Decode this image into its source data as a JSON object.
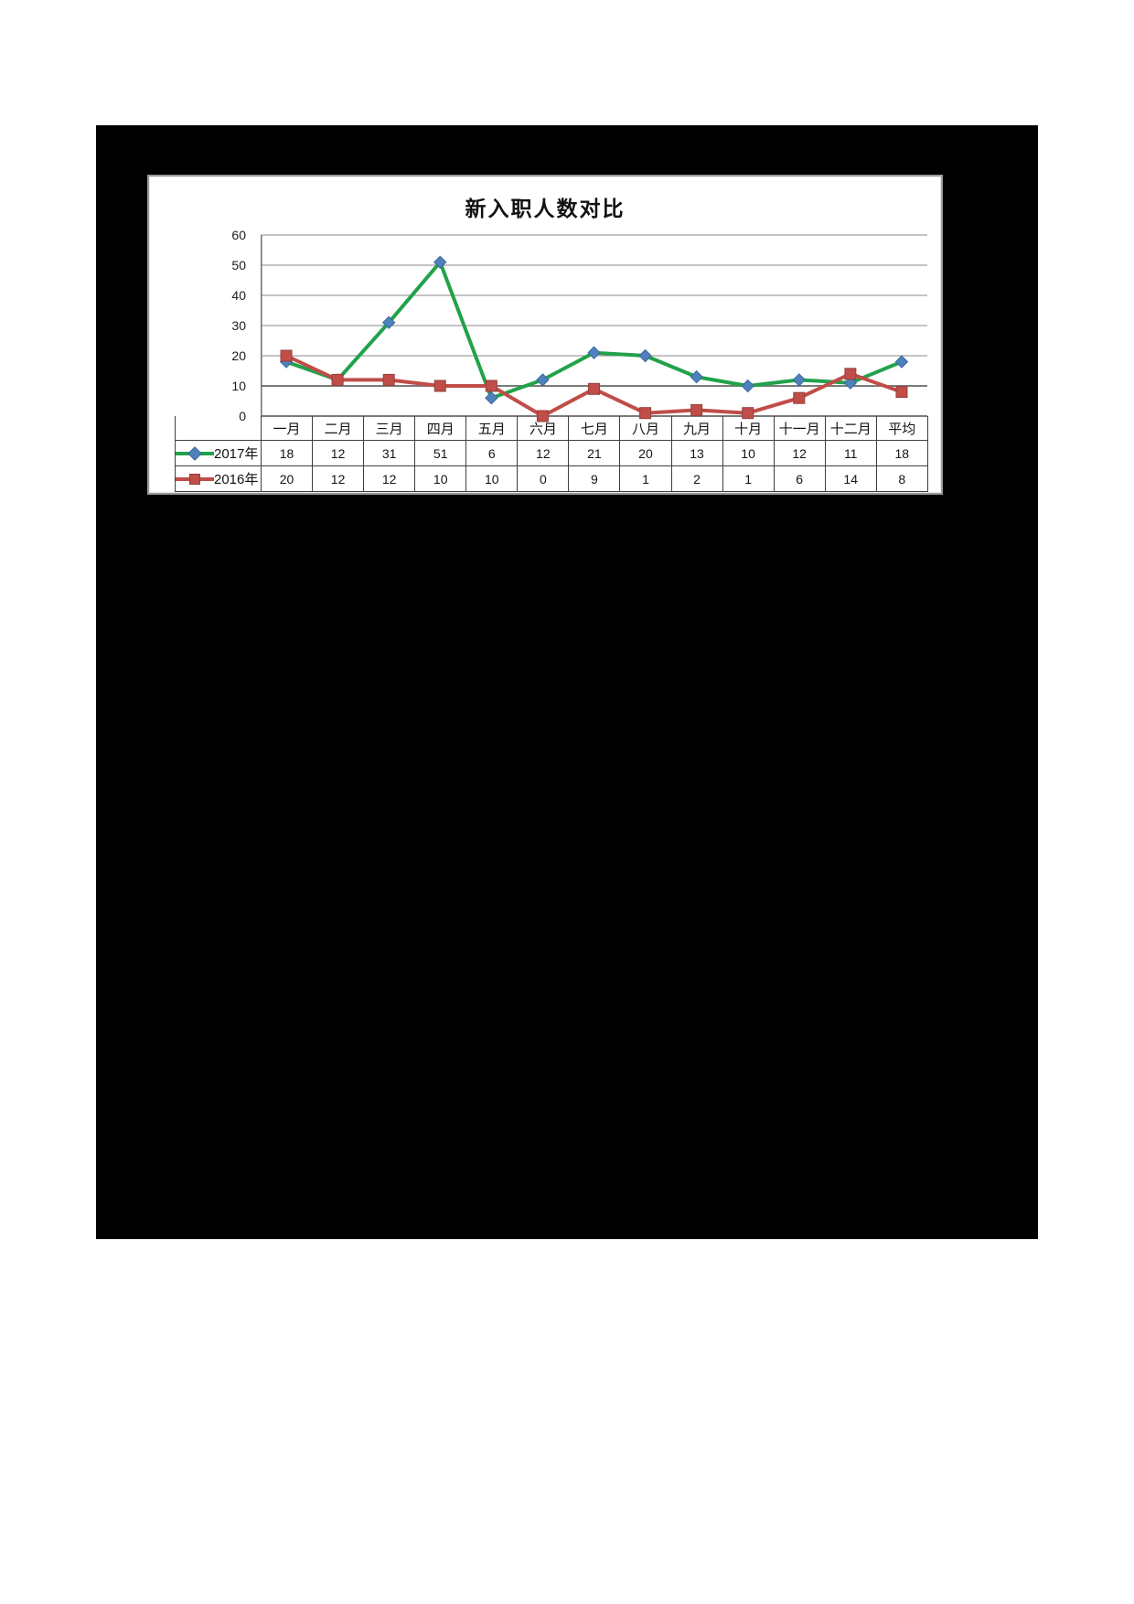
{
  "page": {
    "background": "#FFFFFF"
  },
  "embedded_image": {
    "background": "#000000"
  },
  "chart_data": {
    "type": "line",
    "title": "新入职人数对比",
    "categories": [
      "一月",
      "二月",
      "三月",
      "四月",
      "五月",
      "六月",
      "七月",
      "八月",
      "九月",
      "十月",
      "十一月",
      "十二月",
      "平均"
    ],
    "series": [
      {
        "name": "2017年",
        "values": [
          18,
          12,
          31,
          51,
          6,
          12,
          21,
          20,
          13,
          10,
          12,
          11,
          18
        ],
        "line_color": "#21A24A",
        "marker": "diamond",
        "marker_color": "#4F81BD",
        "marker_edge": "#3A689E"
      },
      {
        "name": "2016年",
        "values": [
          20,
          12,
          12,
          10,
          10,
          0,
          9,
          1,
          2,
          1,
          6,
          14,
          8
        ],
        "line_color": "#C04D48",
        "marker": "square",
        "marker_color": "#C04D48",
        "marker_edge": "#94403D"
      }
    ],
    "xlabel": "",
    "ylabel": "",
    "ylim": [
      0,
      60
    ],
    "y_ticks": [
      0,
      10,
      20,
      30,
      40,
      50,
      60
    ],
    "grid": "horizontal",
    "legend_position": "table-left",
    "colors": {
      "grid": "#8A8A8A",
      "grid_major": "#7A7A7A",
      "axis": "#6E6E6E",
      "table_border": "#3F3F3F",
      "panel_border": "#9A9A9A"
    }
  }
}
